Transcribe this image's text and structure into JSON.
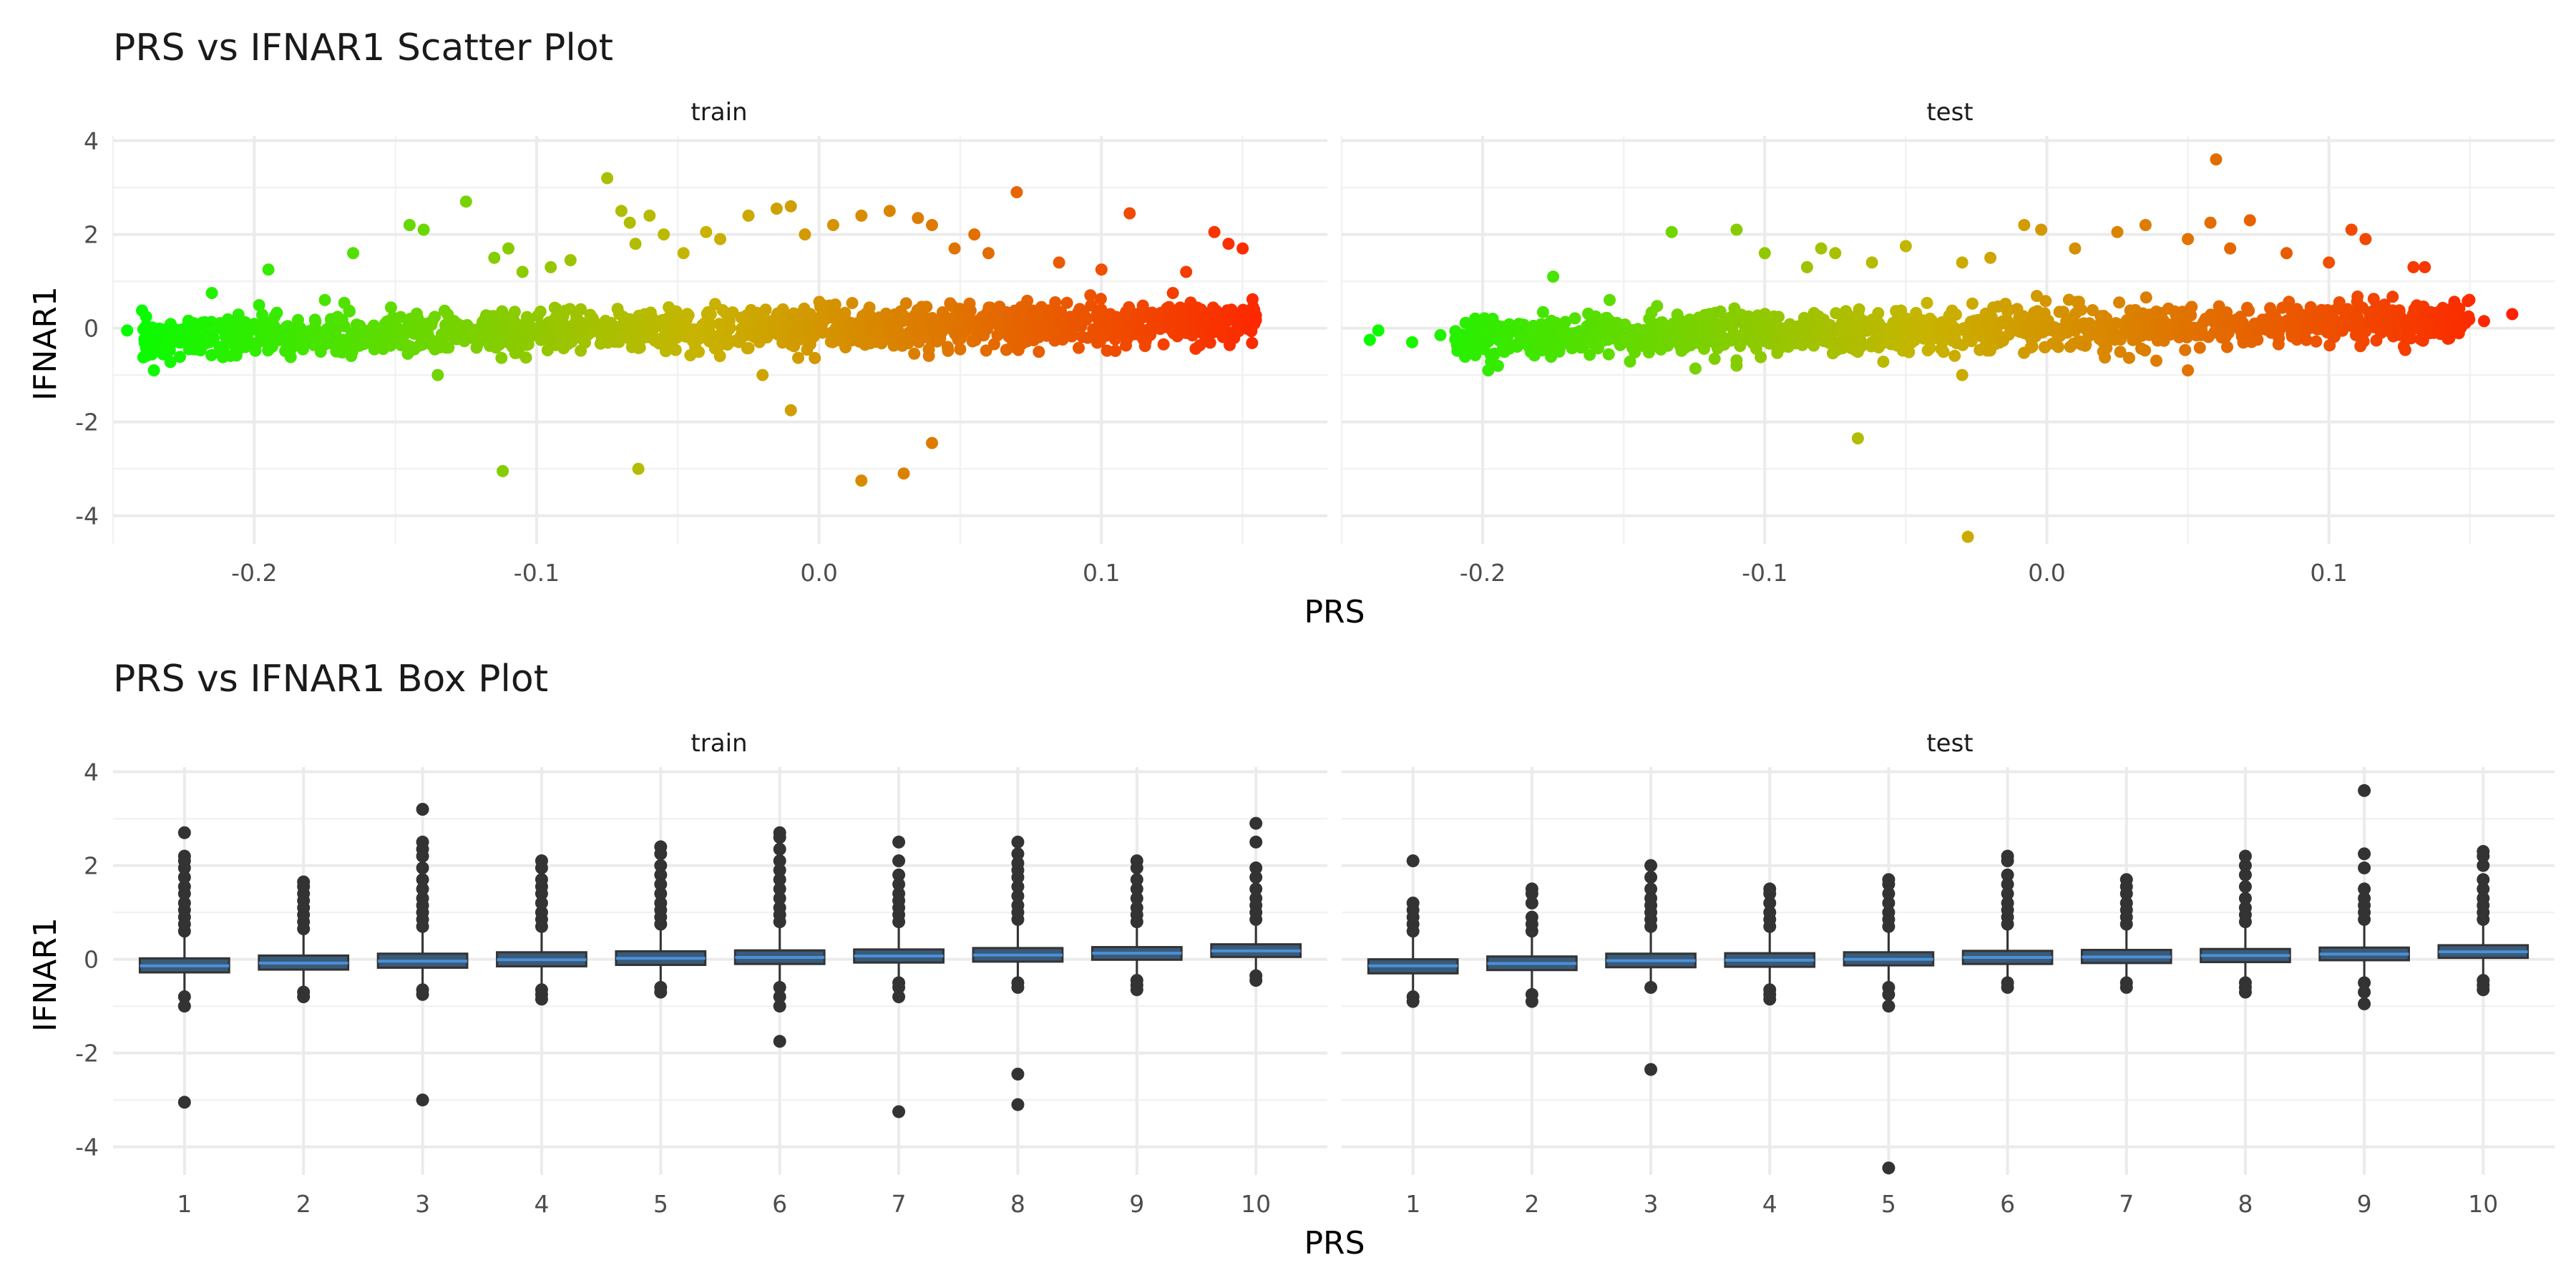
{
  "chart_data": [
    {
      "type": "scatter",
      "title": "PRS vs IFNAR1 Scatter Plot",
      "xlabel": "PRS",
      "ylabel": "IFNAR1",
      "facets": [
        "train",
        "test"
      ],
      "xlim": [
        -0.25,
        0.18
      ],
      "ylim": [
        -4.6,
        4.1
      ],
      "x_ticks": [
        -0.2,
        -0.1,
        0.0,
        0.1
      ],
      "x_tick_labels": [
        "-0.2",
        "-0.1",
        "0.0",
        "0.1"
      ],
      "y_ticks": [
        -4,
        -2,
        0,
        2,
        4
      ],
      "y_tick_labels": [
        "-4",
        "-2",
        "0",
        "2",
        "4"
      ],
      "color_gradient": {
        "low": "#00ff00",
        "mid": "#c8b400",
        "high": "#ff2200"
      },
      "grid": true,
      "legend": "none",
      "panels": [
        {
          "name": "train",
          "density": {
            "x_range": [
              -0.24,
              0.155
            ],
            "count": 1400,
            "y_sd": 0.22
          },
          "outliers": [
            [
              -0.245,
              -0.05
            ],
            [
              -0.215,
              0.75
            ],
            [
              -0.195,
              1.25
            ],
            [
              -0.175,
              0.6
            ],
            [
              -0.165,
              1.6
            ],
            [
              -0.145,
              2.2
            ],
            [
              -0.14,
              2.1
            ],
            [
              -0.125,
              2.7
            ],
            [
              -0.115,
              1.5
            ],
            [
              -0.11,
              1.7
            ],
            [
              -0.105,
              1.2
            ],
            [
              -0.095,
              1.3
            ],
            [
              -0.088,
              1.45
            ],
            [
              -0.075,
              3.2
            ],
            [
              -0.07,
              2.5
            ],
            [
              -0.067,
              2.25
            ],
            [
              -0.065,
              1.8
            ],
            [
              -0.06,
              2.4
            ],
            [
              -0.055,
              2.0
            ],
            [
              -0.048,
              1.6
            ],
            [
              -0.04,
              2.05
            ],
            [
              -0.035,
              1.9
            ],
            [
              -0.025,
              2.4
            ],
            [
              -0.015,
              2.55
            ],
            [
              -0.01,
              2.6
            ],
            [
              -0.005,
              2.0
            ],
            [
              0.005,
              2.2
            ],
            [
              0.015,
              2.4
            ],
            [
              0.025,
              2.5
            ],
            [
              0.035,
              2.35
            ],
            [
              0.04,
              2.2
            ],
            [
              0.048,
              1.7
            ],
            [
              0.055,
              2.0
            ],
            [
              0.06,
              1.6
            ],
            [
              0.07,
              2.9
            ],
            [
              0.085,
              1.4
            ],
            [
              0.1,
              1.25
            ],
            [
              0.11,
              2.45
            ],
            [
              0.13,
              1.2
            ],
            [
              0.14,
              2.05
            ],
            [
              0.145,
              1.8
            ],
            [
              0.15,
              1.7
            ],
            [
              -0.112,
              -3.05
            ],
            [
              -0.064,
              -3.0
            ],
            [
              -0.01,
              -1.75
            ],
            [
              0.015,
              -3.25
            ],
            [
              0.03,
              -3.1
            ],
            [
              0.04,
              -2.45
            ],
            [
              -0.02,
              -1.0
            ],
            [
              -0.135,
              -1.0
            ]
          ]
        },
        {
          "name": "test",
          "density": {
            "x_range": [
              -0.21,
              0.15
            ],
            "count": 1300,
            "y_sd": 0.22
          },
          "outliers": [
            [
              -0.24,
              -0.25
            ],
            [
              -0.237,
              -0.05
            ],
            [
              -0.225,
              -0.3
            ],
            [
              -0.215,
              -0.15
            ],
            [
              -0.175,
              1.1
            ],
            [
              -0.155,
              0.6
            ],
            [
              -0.133,
              2.05
            ],
            [
              -0.11,
              2.1
            ],
            [
              -0.1,
              1.6
            ],
            [
              -0.085,
              1.3
            ],
            [
              -0.08,
              1.7
            ],
            [
              -0.075,
              1.6
            ],
            [
              -0.062,
              1.4
            ],
            [
              -0.05,
              1.75
            ],
            [
              -0.03,
              1.4
            ],
            [
              -0.02,
              1.5
            ],
            [
              -0.008,
              2.2
            ],
            [
              -0.002,
              2.1
            ],
            [
              0.01,
              1.7
            ],
            [
              0.025,
              2.05
            ],
            [
              0.035,
              2.2
            ],
            [
              0.05,
              1.9
            ],
            [
              0.058,
              2.25
            ],
            [
              0.06,
              3.6
            ],
            [
              0.065,
              1.7
            ],
            [
              0.072,
              2.3
            ],
            [
              0.085,
              1.6
            ],
            [
              0.1,
              1.4
            ],
            [
              0.108,
              2.1
            ],
            [
              0.113,
              1.9
            ],
            [
              0.13,
              1.3
            ],
            [
              0.134,
              1.3
            ],
            [
              0.155,
              0.15
            ],
            [
              0.165,
              0.3
            ],
            [
              -0.067,
              -2.35
            ],
            [
              -0.028,
              -4.45
            ],
            [
              0.05,
              -0.9
            ],
            [
              -0.11,
              -0.8
            ],
            [
              -0.03,
              -1.0
            ]
          ]
        }
      ]
    },
    {
      "type": "box",
      "title": "PRS vs IFNAR1 Box Plot",
      "xlabel": "PRS",
      "ylabel": "IFNAR1",
      "facets": [
        "train",
        "test"
      ],
      "categories": [
        "1",
        "2",
        "3",
        "4",
        "5",
        "6",
        "7",
        "8",
        "9",
        "10"
      ],
      "ylim": [
        -4.6,
        4.1
      ],
      "y_ticks": [
        -4,
        -2,
        0,
        2,
        4
      ],
      "y_tick_labels": [
        "-4",
        "-2",
        "0",
        "2",
        "4"
      ],
      "box_fill": "#3a5a78",
      "median_color": "#4a90d9",
      "outlier_color": "#333333",
      "grid": true,
      "panels": [
        {
          "name": "train",
          "boxes": [
            {
              "q1": -0.28,
              "median": -0.14,
              "q3": 0.02,
              "lower": -0.7,
              "upper": 0.5,
              "outliers": [
                0.6,
                0.75,
                0.9,
                1.05,
                1.2,
                1.4,
                1.55,
                1.75,
                1.95,
                2.1,
                2.2,
                2.7,
                -0.8,
                -1.0,
                -3.05
              ]
            },
            {
              "q1": -0.22,
              "median": -0.08,
              "q3": 0.08,
              "lower": -0.6,
              "upper": 0.55,
              "outliers": [
                0.65,
                0.8,
                0.95,
                1.1,
                1.25,
                1.4,
                1.55,
                1.65,
                -0.7,
                -0.8
              ]
            },
            {
              "q1": -0.18,
              "median": -0.04,
              "q3": 0.12,
              "lower": -0.55,
              "upper": 0.6,
              "outliers": [
                0.7,
                0.85,
                1.0,
                1.15,
                1.3,
                1.5,
                1.7,
                1.95,
                2.2,
                2.35,
                2.5,
                3.2,
                -0.65,
                -0.75,
                -3.0
              ]
            },
            {
              "q1": -0.15,
              "median": -0.01,
              "q3": 0.15,
              "lower": -0.55,
              "upper": 0.6,
              "outliers": [
                0.7,
                0.85,
                1.0,
                1.2,
                1.4,
                1.55,
                1.7,
                1.95,
                2.1,
                -0.65,
                -0.75,
                -0.85
              ]
            },
            {
              "q1": -0.12,
              "median": 0.02,
              "q3": 0.17,
              "lower": -0.5,
              "upper": 0.65,
              "outliers": [
                0.75,
                0.9,
                1.05,
                1.2,
                1.4,
                1.6,
                1.8,
                2.0,
                2.25,
                2.4,
                -0.6,
                -0.7
              ]
            },
            {
              "q1": -0.1,
              "median": 0.04,
              "q3": 0.19,
              "lower": -0.5,
              "upper": 0.7,
              "outliers": [
                0.8,
                0.95,
                1.1,
                1.3,
                1.5,
                1.7,
                1.9,
                2.1,
                2.35,
                2.6,
                2.7,
                -0.6,
                -0.8,
                -1.0,
                -1.75
              ]
            },
            {
              "q1": -0.07,
              "median": 0.07,
              "q3": 0.21,
              "lower": -0.45,
              "upper": 0.7,
              "outliers": [
                0.8,
                0.95,
                1.1,
                1.25,
                1.4,
                1.6,
                1.8,
                2.1,
                2.5,
                -0.5,
                -0.6,
                -0.8,
                -3.25
              ]
            },
            {
              "q1": -0.05,
              "median": 0.09,
              "q3": 0.24,
              "lower": -0.4,
              "upper": 0.75,
              "outliers": [
                0.85,
                1.0,
                1.15,
                1.35,
                1.55,
                1.75,
                1.9,
                2.05,
                2.25,
                2.5,
                -0.5,
                -0.6,
                -2.45,
                -3.1
              ]
            },
            {
              "q1": -0.01,
              "median": 0.13,
              "q3": 0.26,
              "lower": -0.35,
              "upper": 0.7,
              "outliers": [
                0.8,
                0.95,
                1.1,
                1.3,
                1.5,
                1.7,
                1.95,
                2.1,
                -0.45,
                -0.55,
                -0.65
              ]
            },
            {
              "q1": 0.05,
              "median": 0.18,
              "q3": 0.32,
              "lower": -0.25,
              "upper": 0.75,
              "outliers": [
                0.85,
                1.0,
                1.15,
                1.3,
                1.5,
                1.75,
                1.95,
                2.5,
                2.9,
                -0.35,
                -0.45
              ]
            }
          ]
        },
        {
          "name": "test",
          "boxes": [
            {
              "q1": -0.3,
              "median": -0.14,
              "q3": 0.0,
              "lower": -0.7,
              "upper": 0.5,
              "outliers": [
                0.6,
                0.75,
                0.9,
                1.05,
                1.2,
                2.1,
                -0.8,
                -0.9
              ]
            },
            {
              "q1": -0.23,
              "median": -0.09,
              "q3": 0.06,
              "lower": -0.65,
              "upper": 0.5,
              "outliers": [
                0.6,
                0.75,
                0.9,
                1.2,
                1.4,
                1.5,
                -0.75,
                -0.9
              ]
            },
            {
              "q1": -0.17,
              "median": -0.03,
              "q3": 0.12,
              "lower": -0.55,
              "upper": 0.6,
              "outliers": [
                0.7,
                0.85,
                1.0,
                1.15,
                1.3,
                1.5,
                1.75,
                2.0,
                -0.6,
                -2.35
              ]
            },
            {
              "q1": -0.16,
              "median": -0.02,
              "q3": 0.13,
              "lower": -0.55,
              "upper": 0.6,
              "outliers": [
                0.7,
                0.85,
                1.0,
                1.2,
                1.4,
                1.5,
                -0.65,
                -0.75,
                -0.85
              ]
            },
            {
              "q1": -0.13,
              "median": 0.0,
              "q3": 0.15,
              "lower": -0.5,
              "upper": 0.6,
              "outliers": [
                0.7,
                0.85,
                1.0,
                1.2,
                1.4,
                1.6,
                1.7,
                -0.6,
                -0.75,
                -1.0,
                -4.45
              ]
            },
            {
              "q1": -0.1,
              "median": 0.04,
              "q3": 0.18,
              "lower": -0.45,
              "upper": 0.65,
              "outliers": [
                0.75,
                0.9,
                1.05,
                1.2,
                1.4,
                1.6,
                1.8,
                2.1,
                2.2,
                -0.5,
                -0.6
              ]
            },
            {
              "q1": -0.08,
              "median": 0.05,
              "q3": 0.2,
              "lower": -0.45,
              "upper": 0.65,
              "outliers": [
                0.75,
                0.9,
                1.05,
                1.2,
                1.4,
                1.55,
                1.7,
                -0.5,
                -0.6
              ]
            },
            {
              "q1": -0.06,
              "median": 0.08,
              "q3": 0.22,
              "lower": -0.4,
              "upper": 0.7,
              "outliers": [
                0.8,
                0.95,
                1.1,
                1.3,
                1.55,
                1.8,
                2.0,
                2.2,
                -0.5,
                -0.6,
                -0.7
              ]
            },
            {
              "q1": -0.02,
              "median": 0.11,
              "q3": 0.25,
              "lower": -0.4,
              "upper": 0.75,
              "outliers": [
                0.85,
                1.0,
                1.15,
                1.3,
                1.5,
                1.95,
                2.25,
                3.6,
                -0.5,
                -0.7,
                -0.95
              ]
            },
            {
              "q1": 0.03,
              "median": 0.16,
              "q3": 0.3,
              "lower": -0.35,
              "upper": 0.75,
              "outliers": [
                0.85,
                1.0,
                1.15,
                1.3,
                1.5,
                1.7,
                2.0,
                2.2,
                2.3,
                -0.45,
                -0.55,
                -0.65
              ]
            }
          ]
        }
      ]
    }
  ]
}
